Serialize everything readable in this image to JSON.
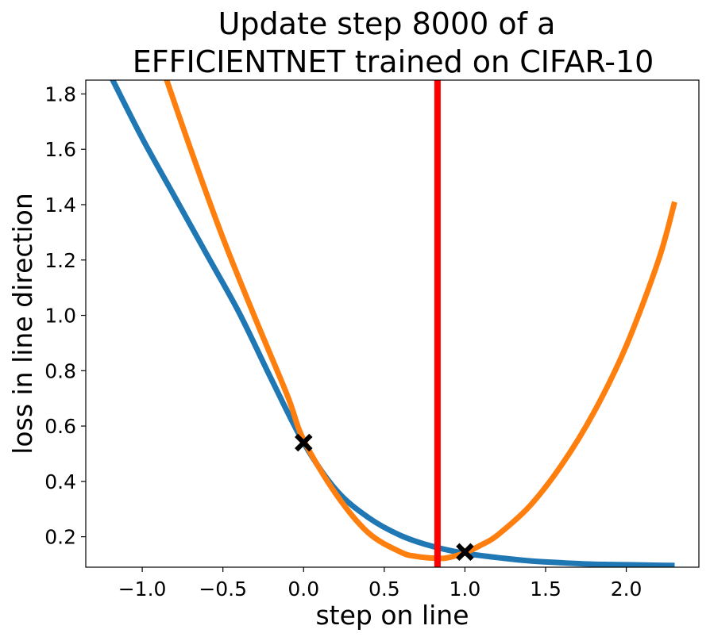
{
  "chart_data": {
    "type": "line",
    "title_lines": [
      "Update step 8000 of a",
      "EFFICIENTNET trained on CIFAR-10"
    ],
    "xlabel": "step on line",
    "ylabel": "loss in line direction",
    "xlim": [
      -1.35,
      2.45
    ],
    "ylim": [
      0.09,
      1.85
    ],
    "xticks": [
      "−1.0",
      "−0.5",
      "0.0",
      "0.5",
      "1.0",
      "1.5",
      "2.0"
    ],
    "xtick_values": [
      -1.0,
      -0.5,
      0.0,
      0.5,
      1.0,
      1.5,
      2.0
    ],
    "yticks": [
      "0.2",
      "0.4",
      "0.6",
      "0.8",
      "1.0",
      "1.2",
      "1.4",
      "1.6",
      "1.8"
    ],
    "ytick_values": [
      0.2,
      0.4,
      0.6,
      0.8,
      1.0,
      1.2,
      1.4,
      1.6,
      1.8
    ],
    "grid": false,
    "series": [
      {
        "color": "#1f77b4",
        "x": [
          -1.2,
          -1.0,
          -0.8,
          -0.6,
          -0.4,
          -0.2,
          0.0,
          0.2,
          0.4,
          0.6,
          0.8,
          1.0,
          1.2,
          1.4,
          1.6,
          1.8,
          2.0,
          2.2,
          2.3
        ],
        "y": [
          1.87,
          1.64,
          1.43,
          1.22,
          1.01,
          0.77,
          0.54,
          0.37,
          0.27,
          0.205,
          0.165,
          0.14,
          0.125,
          0.113,
          0.106,
          0.101,
          0.099,
          0.097,
          0.096
        ]
      },
      {
        "color": "#ff7f0e",
        "x": [
          -0.86,
          -0.7,
          -0.5,
          -0.3,
          -0.1,
          0.0,
          0.2,
          0.4,
          0.6,
          0.7,
          0.83,
          0.9,
          1.0,
          1.1,
          1.2,
          1.4,
          1.6,
          1.8,
          2.0,
          2.2,
          2.3
        ],
        "y": [
          1.87,
          1.6,
          1.28,
          0.99,
          0.71,
          0.55,
          0.355,
          0.215,
          0.145,
          0.129,
          0.122,
          0.125,
          0.142,
          0.17,
          0.205,
          0.31,
          0.46,
          0.65,
          0.89,
          1.2,
          1.41
        ]
      }
    ],
    "vline": {
      "x": 0.83,
      "color": "#ff0000"
    },
    "markers": [
      {
        "x": 0.0,
        "y": 0.54,
        "symbol": "X",
        "color": "#000000"
      },
      {
        "x": 1.0,
        "y": 0.145,
        "symbol": "X",
        "color": "#000000"
      }
    ]
  }
}
